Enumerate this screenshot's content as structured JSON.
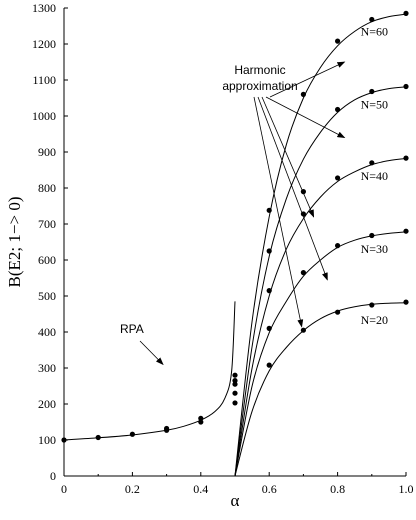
{
  "chart_data": {
    "type": "scatter",
    "xlabel": "α",
    "ylabel": "B(E2; 1−> 0)",
    "xlim": [
      0,
      1.0
    ],
    "ylim": [
      0,
      1300
    ],
    "x_ticks": [
      "0",
      "0.2",
      "0.4",
      "0.6",
      "0.8",
      "1.0"
    ],
    "y_ticks": [
      "0",
      "100",
      "200",
      "300",
      "400",
      "500",
      "600",
      "700",
      "800",
      "900",
      "1000",
      "1100",
      "1200",
      "1300"
    ],
    "grid": false,
    "annotations": [
      {
        "text": "RPA"
      },
      {
        "text_lines": [
          "Harmonic",
          "approximation"
        ]
      }
    ],
    "series": [
      {
        "label": "RPA",
        "curve": {
          "x": [
            0,
            0.1,
            0.2,
            0.3,
            0.35,
            0.4,
            0.44,
            0.47,
            0.49,
            0.5
          ],
          "y": [
            100,
            106,
            114,
            127,
            138,
            155,
            178,
            215,
            290,
            485
          ]
        },
        "points": {
          "x": [
            0,
            0.1,
            0.2,
            0.3,
            0.3,
            0.4,
            0.4,
            0.5,
            0.5,
            0.5,
            0.5,
            0.5
          ],
          "y": [
            100,
            107,
            116,
            127,
            132,
            150,
            160,
            203,
            230,
            255,
            265,
            280
          ]
        }
      },
      {
        "label": "N=20",
        "curve": {
          "x": [
            0.5,
            0.55,
            0.6,
            0.65,
            0.7,
            0.75,
            0.8,
            0.85,
            0.9,
            0.95,
            1.0
          ],
          "y": [
            0,
            180,
            292,
            357,
            404,
            437,
            458,
            470,
            477,
            480,
            481
          ]
        },
        "points": {
          "x": [
            0.6,
            0.7,
            0.8,
            0.9,
            1.0
          ],
          "y": [
            308,
            405,
            455,
            475,
            483
          ]
        }
      },
      {
        "label": "N=30",
        "curve": {
          "x": [
            0.5,
            0.55,
            0.6,
            0.65,
            0.7,
            0.75,
            0.8,
            0.85,
            0.9,
            0.95,
            1.0
          ],
          "y": [
            0,
            250,
            398,
            485,
            555,
            600,
            635,
            655,
            667,
            674,
            678
          ]
        },
        "points": {
          "x": [
            0.6,
            0.7,
            0.8,
            0.9,
            1.0
          ],
          "y": [
            410,
            565,
            640,
            668,
            680
          ]
        }
      },
      {
        "label": "N=40",
        "curve": {
          "x": [
            0.5,
            0.55,
            0.6,
            0.65,
            0.7,
            0.75,
            0.8,
            0.85,
            0.9,
            0.95,
            1.0
          ],
          "y": [
            0,
            300,
            500,
            630,
            715,
            775,
            818,
            845,
            865,
            876,
            882
          ]
        },
        "points": {
          "x": [
            0.6,
            0.7,
            0.8,
            0.9,
            1.0
          ],
          "y": [
            515,
            728,
            828,
            870,
            883
          ]
        }
      },
      {
        "label": "N=50",
        "curve": {
          "x": [
            0.5,
            0.55,
            0.6,
            0.65,
            0.7,
            0.75,
            0.8,
            0.85,
            0.9,
            0.95,
            1.0
          ],
          "y": [
            0,
            360,
            610,
            770,
            880,
            955,
            1010,
            1045,
            1065,
            1076,
            1081
          ]
        },
        "points": {
          "x": [
            0.6,
            0.7,
            0.8,
            0.9,
            1.0
          ],
          "y": [
            625,
            790,
            1018,
            1068,
            1082
          ]
        }
      },
      {
        "label": "N=60",
        "curve": {
          "x": [
            0.5,
            0.55,
            0.6,
            0.65,
            0.7,
            0.75,
            0.8,
            0.85,
            0.9,
            0.95,
            1.0
          ],
          "y": [
            0,
            430,
            720,
            920,
            1050,
            1135,
            1195,
            1235,
            1262,
            1276,
            1283
          ]
        },
        "points": {
          "x": [
            0.6,
            0.7,
            0.8,
            0.9,
            1.0
          ],
          "y": [
            738,
            1060,
            1208,
            1268,
            1285
          ]
        }
      }
    ]
  }
}
